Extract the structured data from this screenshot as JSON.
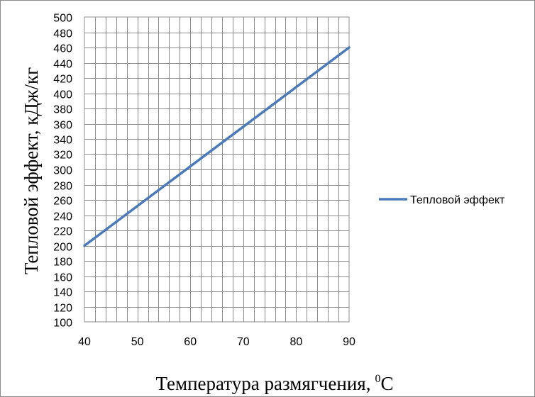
{
  "chart_data": {
    "type": "line",
    "x": [
      40,
      50,
      60,
      70,
      80,
      90
    ],
    "series": [
      {
        "name": "Тепловой эффект",
        "values": [
          200,
          252,
          304,
          356,
          408,
          460
        ],
        "color": "#4a7ab8"
      }
    ],
    "xlabel": "Температура размягчения,",
    "xlabel_unit_superscript": "0",
    "xlabel_unit": "С",
    "ylabel": "Тепловой эффект, кДж/кг",
    "xlim": [
      40,
      90
    ],
    "ylim": [
      100,
      500
    ],
    "x_ticks": [
      40,
      50,
      60,
      70,
      80,
      90
    ],
    "y_ticks": [
      100,
      120,
      140,
      160,
      180,
      200,
      220,
      240,
      260,
      280,
      300,
      320,
      340,
      360,
      380,
      400,
      420,
      440,
      460,
      480,
      500
    ],
    "x_minor_step": 2,
    "grid": true,
    "legend_position": "right"
  }
}
